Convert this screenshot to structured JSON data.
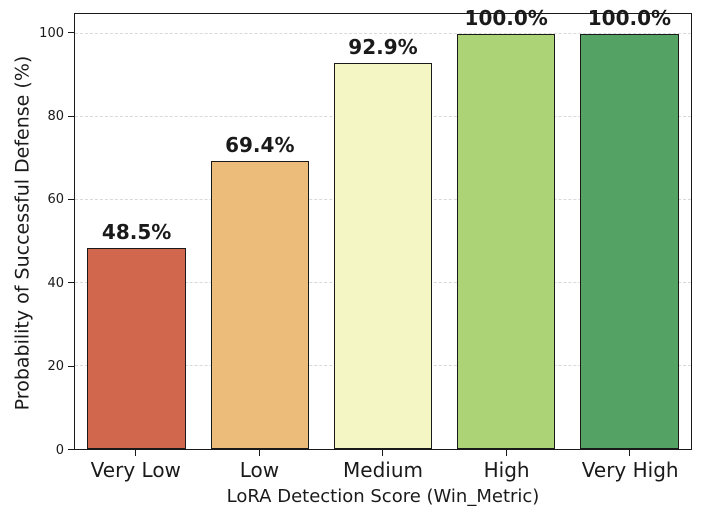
{
  "chart_data": {
    "type": "bar",
    "title": "",
    "xlabel": "LoRA Detection Score (Win_Metric)",
    "ylabel": "Probability of Successful Defense (%)",
    "categories": [
      "Very Low",
      "Low",
      "Medium",
      "High",
      "Very High"
    ],
    "values": [
      48.5,
      69.4,
      92.9,
      100.0,
      100.0
    ],
    "value_labels": [
      "48.5%",
      "69.4%",
      "92.9%",
      "100.0%",
      "100.0%"
    ],
    "bar_colors": [
      "#d1674d",
      "#ecbd7a",
      "#f4f7c4",
      "#acd476",
      "#55a364"
    ],
    "bar_edge_color": "#1a1a1a",
    "yticks": [
      0,
      20,
      40,
      60,
      80,
      100
    ],
    "ytick_labels": [
      "0",
      "20",
      "40",
      "60",
      "80",
      "100"
    ],
    "ylim": [
      0,
      104.8
    ],
    "grid": true,
    "grid_style": "dashed",
    "grid_color": "#d9d9d9",
    "legend": "none",
    "bar_width_fraction": 0.8,
    "background_color": "#ffffff",
    "text_color": "#1a1a1a"
  }
}
